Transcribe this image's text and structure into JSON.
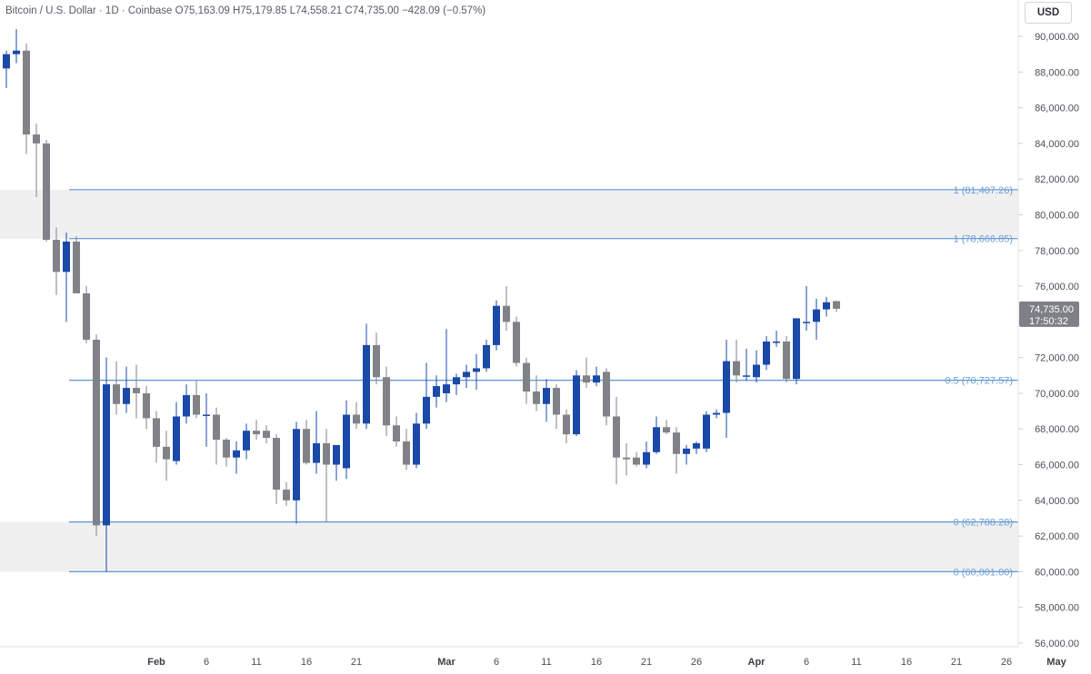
{
  "header": {
    "symbol": "Bitcoin / U.S. Dollar · 1D · Coinbase",
    "open": "O75,163.09",
    "high": "H75,179.85",
    "low": "L74,558.21",
    "close": "C74,735.00",
    "change": "−428.09 (−0.57%)"
  },
  "currency": "USD",
  "colors": {
    "up": "#1a49a8",
    "down": "#808287",
    "level": "#5b96d6",
    "zone": "#f0f0f0",
    "price_tag": "#7d8086"
  },
  "chart_data": {
    "type": "candlestick",
    "ylim": [
      56000,
      91000
    ],
    "yticks": [
      56000,
      58000,
      60000,
      62000,
      64000,
      66000,
      68000,
      70000,
      72000,
      74000,
      76000,
      78000,
      80000,
      82000,
      84000,
      86000,
      88000,
      90000
    ],
    "ytick_labels": [
      "56,000.00",
      "58,000.00",
      "60,000.00",
      "62,000.00",
      "64,000.00",
      "66,000.00",
      "68,000.00",
      "70,000.00",
      "72,000.00",
      "74,000.00",
      "76,000.00",
      "78,000.00",
      "80,000.00",
      "82,000.00",
      "84,000.00",
      "86,000.00",
      "88,000.00",
      "90,000.00"
    ],
    "xticks": [
      {
        "label": "Feb",
        "date": "2024-02-01",
        "month": true
      },
      {
        "label": "6",
        "date": "2024-02-06"
      },
      {
        "label": "11",
        "date": "2024-02-11"
      },
      {
        "label": "16",
        "date": "2024-02-16"
      },
      {
        "label": "21",
        "date": "2024-02-21"
      },
      {
        "label": "Mar",
        "date": "2024-03-01",
        "month": true
      },
      {
        "label": "6",
        "date": "2024-03-06"
      },
      {
        "label": "11",
        "date": "2024-03-11"
      },
      {
        "label": "16",
        "date": "2024-03-16"
      },
      {
        "label": "21",
        "date": "2024-03-21"
      },
      {
        "label": "26",
        "date": "2024-03-26"
      },
      {
        "label": "Apr",
        "date": "2024-04-01",
        "month": true
      },
      {
        "label": "6",
        "date": "2024-04-06"
      },
      {
        "label": "11",
        "date": "2024-04-11"
      },
      {
        "label": "16",
        "date": "2024-04-16"
      },
      {
        "label": "21",
        "date": "2024-04-21"
      },
      {
        "label": "26",
        "date": "2024-04-26"
      },
      {
        "label": "May",
        "date": "2024-05-01",
        "month": true
      }
    ],
    "xlim": [
      "2024-01-17",
      "2024-05-02"
    ],
    "levels": [
      {
        "label": "1 (81,407.26)",
        "value": 81407.26
      },
      {
        "label": "1 (78,666.85)",
        "value": 78666.85
      },
      {
        "label": "0.5 (70,727.57)",
        "value": 70727.57
      },
      {
        "label": "0 (62,788.28)",
        "value": 62788.28
      },
      {
        "label": "0 (60,001.00)",
        "value": 60001.0
      }
    ],
    "zones": [
      {
        "from": 78666.85,
        "to": 81407.26
      },
      {
        "from": 60001.0,
        "to": 62788.28
      }
    ],
    "current_price": {
      "price": "74,735.00",
      "countdown": "17:50:32",
      "value": 74735
    },
    "candles": [
      {
        "d": "2024-01-17",
        "o": 88200,
        "h": 89200,
        "l": 87100,
        "c": 89000
      },
      {
        "d": "2024-01-18",
        "o": 89000,
        "h": 90400,
        "l": 88500,
        "c": 89200
      },
      {
        "d": "2024-01-19",
        "o": 89200,
        "h": 89600,
        "l": 83400,
        "c": 84500
      },
      {
        "d": "2024-01-20",
        "o": 84500,
        "h": 85100,
        "l": 81000,
        "c": 84000
      },
      {
        "d": "2024-01-21",
        "o": 84000,
        "h": 84200,
        "l": 78500,
        "c": 78600
      },
      {
        "d": "2024-01-22",
        "o": 78600,
        "h": 79300,
        "l": 75500,
        "c": 76800
      },
      {
        "d": "2024-01-23",
        "o": 76800,
        "h": 79000,
        "l": 74000,
        "c": 78500
      },
      {
        "d": "2024-01-24",
        "o": 78500,
        "h": 78800,
        "l": 75600,
        "c": 75600
      },
      {
        "d": "2024-01-25",
        "o": 75600,
        "h": 76000,
        "l": 72800,
        "c": 73000
      },
      {
        "d": "2024-01-26",
        "o": 73000,
        "h": 73300,
        "l": 62000,
        "c": 62600
      },
      {
        "d": "2024-01-27",
        "o": 62600,
        "h": 72000,
        "l": 60001,
        "c": 70500
      },
      {
        "d": "2024-01-28",
        "o": 70500,
        "h": 71800,
        "l": 68800,
        "c": 69400
      },
      {
        "d": "2024-01-29",
        "o": 69400,
        "h": 71500,
        "l": 68900,
        "c": 70300
      },
      {
        "d": "2024-01-30",
        "o": 70300,
        "h": 71600,
        "l": 68600,
        "c": 70000
      },
      {
        "d": "2024-01-31",
        "o": 70000,
        "h": 70400,
        "l": 68000,
        "c": 68600
      },
      {
        "d": "2024-02-01",
        "o": 68600,
        "h": 69000,
        "l": 66100,
        "c": 67000
      },
      {
        "d": "2024-02-02",
        "o": 67000,
        "h": 67900,
        "l": 65100,
        "c": 66300
      },
      {
        "d": "2024-02-03",
        "o": 66200,
        "h": 69500,
        "l": 66000,
        "c": 68700
      },
      {
        "d": "2024-02-04",
        "o": 68700,
        "h": 70500,
        "l": 68300,
        "c": 69900
      },
      {
        "d": "2024-02-05",
        "o": 69900,
        "h": 70700,
        "l": 68600,
        "c": 68800
      },
      {
        "d": "2024-02-06",
        "o": 68800,
        "h": 70000,
        "l": 67000,
        "c": 68800
      },
      {
        "d": "2024-02-07",
        "o": 68800,
        "h": 69200,
        "l": 66000,
        "c": 67400
      },
      {
        "d": "2024-02-08",
        "o": 67400,
        "h": 67500,
        "l": 65900,
        "c": 66400
      },
      {
        "d": "2024-02-09",
        "o": 66400,
        "h": 67300,
        "l": 65500,
        "c": 66800
      },
      {
        "d": "2024-02-10",
        "o": 66800,
        "h": 68300,
        "l": 66300,
        "c": 67900
      },
      {
        "d": "2024-02-11",
        "o": 67900,
        "h": 68500,
        "l": 67400,
        "c": 67700
      },
      {
        "d": "2024-02-12",
        "o": 67900,
        "h": 68200,
        "l": 67200,
        "c": 67500
      },
      {
        "d": "2024-02-13",
        "o": 67500,
        "h": 67700,
        "l": 63800,
        "c": 64600
      },
      {
        "d": "2024-02-14",
        "o": 64600,
        "h": 65000,
        "l": 63700,
        "c": 64000
      },
      {
        "d": "2024-02-15",
        "o": 64000,
        "h": 68400,
        "l": 62700,
        "c": 68000
      },
      {
        "d": "2024-02-16",
        "o": 68000,
        "h": 68500,
        "l": 66000,
        "c": 66100
      },
      {
        "d": "2024-02-17",
        "o": 66100,
        "h": 69000,
        "l": 65500,
        "c": 67200
      },
      {
        "d": "2024-02-18",
        "o": 67200,
        "h": 68000,
        "l": 62800,
        "c": 66000
      },
      {
        "d": "2024-02-19",
        "o": 66000,
        "h": 67000,
        "l": 65100,
        "c": 67100
      },
      {
        "d": "2024-02-20",
        "o": 65800,
        "h": 69600,
        "l": 65200,
        "c": 68800
      },
      {
        "d": "2024-02-21",
        "o": 68800,
        "h": 69500,
        "l": 68000,
        "c": 68300
      },
      {
        "d": "2024-02-22",
        "o": 68300,
        "h": 73900,
        "l": 68000,
        "c": 72700
      },
      {
        "d": "2024-02-23",
        "o": 72700,
        "h": 73400,
        "l": 70500,
        "c": 70900
      },
      {
        "d": "2024-02-24",
        "o": 70900,
        "h": 71500,
        "l": 67600,
        "c": 68200
      },
      {
        "d": "2024-02-25",
        "o": 68200,
        "h": 68700,
        "l": 67000,
        "c": 67300
      },
      {
        "d": "2024-02-26",
        "o": 67300,
        "h": 68000,
        "l": 65700,
        "c": 66000
      },
      {
        "d": "2024-02-27",
        "o": 66000,
        "h": 68900,
        "l": 65800,
        "c": 68300
      },
      {
        "d": "2024-02-28",
        "o": 68300,
        "h": 71700,
        "l": 68000,
        "c": 69800
      },
      {
        "d": "2024-02-29",
        "o": 69800,
        "h": 71000,
        "l": 69200,
        "c": 70400
      },
      {
        "d": "2024-03-01",
        "o": 70000,
        "h": 73600,
        "l": 69500,
        "c": 70500
      },
      {
        "d": "2024-03-02",
        "o": 70500,
        "h": 71100,
        "l": 69900,
        "c": 70900
      },
      {
        "d": "2024-03-03",
        "o": 70900,
        "h": 71600,
        "l": 70300,
        "c": 71200
      },
      {
        "d": "2024-03-04",
        "o": 71200,
        "h": 72200,
        "l": 70200,
        "c": 71400
      },
      {
        "d": "2024-03-05",
        "o": 71400,
        "h": 73000,
        "l": 71200,
        "c": 72700
      },
      {
        "d": "2024-03-06",
        "o": 72700,
        "h": 75200,
        "l": 72400,
        "c": 74900
      },
      {
        "d": "2024-03-07",
        "o": 74900,
        "h": 76000,
        "l": 73500,
        "c": 74000
      },
      {
        "d": "2024-03-08",
        "o": 74000,
        "h": 74300,
        "l": 71500,
        "c": 71700
      },
      {
        "d": "2024-03-09",
        "o": 71700,
        "h": 72000,
        "l": 69400,
        "c": 70100
      },
      {
        "d": "2024-03-10",
        "o": 70100,
        "h": 71000,
        "l": 69000,
        "c": 69400
      },
      {
        "d": "2024-03-11",
        "o": 69400,
        "h": 70800,
        "l": 68400,
        "c": 70300
      },
      {
        "d": "2024-03-12",
        "o": 70300,
        "h": 70500,
        "l": 68000,
        "c": 68800
      },
      {
        "d": "2024-03-13",
        "o": 68800,
        "h": 69100,
        "l": 67200,
        "c": 67700
      },
      {
        "d": "2024-03-14",
        "o": 67700,
        "h": 71300,
        "l": 67600,
        "c": 71000
      },
      {
        "d": "2024-03-15",
        "o": 71000,
        "h": 72000,
        "l": 70300,
        "c": 70600
      },
      {
        "d": "2024-03-16",
        "o": 70600,
        "h": 71500,
        "l": 70400,
        "c": 71000
      },
      {
        "d": "2024-03-17",
        "o": 71200,
        "h": 71400,
        "l": 68200,
        "c": 68700
      },
      {
        "d": "2024-03-18",
        "o": 68700,
        "h": 69800,
        "l": 64900,
        "c": 66400
      },
      {
        "d": "2024-03-19",
        "o": 66400,
        "h": 67200,
        "l": 65400,
        "c": 66300
      },
      {
        "d": "2024-03-20",
        "o": 66400,
        "h": 66700,
        "l": 65900,
        "c": 66000
      },
      {
        "d": "2024-03-21",
        "o": 66000,
        "h": 67300,
        "l": 65800,
        "c": 66700
      },
      {
        "d": "2024-03-22",
        "o": 66700,
        "h": 68700,
        "l": 66600,
        "c": 68100
      },
      {
        "d": "2024-03-23",
        "o": 68100,
        "h": 68500,
        "l": 67700,
        "c": 67800
      },
      {
        "d": "2024-03-24",
        "o": 67800,
        "h": 68100,
        "l": 65500,
        "c": 66600
      },
      {
        "d": "2024-03-25",
        "o": 66600,
        "h": 67100,
        "l": 66000,
        "c": 66900
      },
      {
        "d": "2024-03-26",
        "o": 66900,
        "h": 67300,
        "l": 66600,
        "c": 67200
      },
      {
        "d": "2024-03-27",
        "o": 66900,
        "h": 69000,
        "l": 66700,
        "c": 68800
      },
      {
        "d": "2024-03-28",
        "o": 68800,
        "h": 69100,
        "l": 68600,
        "c": 68900
      },
      {
        "d": "2024-03-29",
        "o": 68900,
        "h": 73000,
        "l": 67500,
        "c": 71800
      },
      {
        "d": "2024-03-30",
        "o": 71800,
        "h": 73000,
        "l": 70600,
        "c": 71000
      },
      {
        "d": "2024-03-31",
        "o": 71000,
        "h": 72500,
        "l": 70700,
        "c": 71000
      },
      {
        "d": "2024-04-01",
        "o": 70900,
        "h": 72400,
        "l": 70600,
        "c": 71600
      },
      {
        "d": "2024-04-02",
        "o": 71600,
        "h": 73200,
        "l": 71300,
        "c": 72900
      },
      {
        "d": "2024-04-03",
        "o": 72900,
        "h": 73500,
        "l": 72600,
        "c": 72900
      },
      {
        "d": "2024-04-04",
        "o": 72900,
        "h": 73200,
        "l": 70600,
        "c": 70800
      },
      {
        "d": "2024-04-05",
        "o": 70800,
        "h": 74200,
        "l": 70500,
        "c": 74200
      },
      {
        "d": "2024-04-06",
        "o": 74000,
        "h": 76000,
        "l": 73500,
        "c": 74000
      },
      {
        "d": "2024-04-07",
        "o": 74000,
        "h": 75300,
        "l": 73000,
        "c": 74700
      },
      {
        "d": "2024-04-08",
        "o": 74700,
        "h": 75400,
        "l": 74300,
        "c": 75100
      },
      {
        "d": "2024-04-09",
        "o": 75163.09,
        "h": 75179.85,
        "l": 74558.21,
        "c": 74735
      }
    ]
  }
}
